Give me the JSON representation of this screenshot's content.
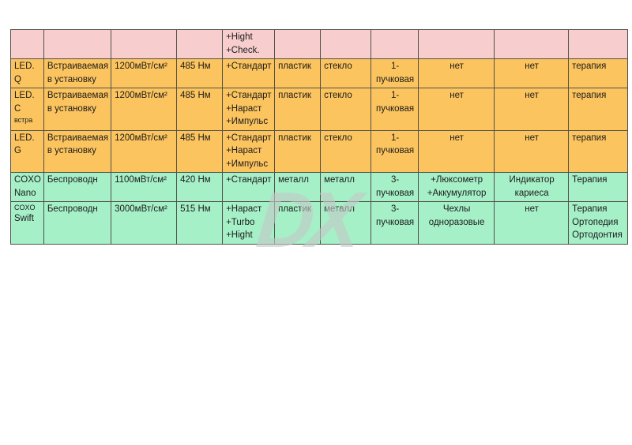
{
  "watermark": {
    "text": "DX"
  },
  "table": {
    "border_color": "#51514a",
    "colors": {
      "pink": "#f8cdcd",
      "orange": "#fcc45e",
      "green": "#a6f0c8"
    },
    "rows": [
      {
        "bg": "pink",
        "name": [],
        "cells": [
          "",
          "",
          "",
          "+Hight\n+Check.",
          "",
          "",
          "",
          "",
          "",
          ""
        ]
      },
      {
        "bg": "orange",
        "name": [
          {
            "t": "LED."
          },
          {
            "t": "Q"
          }
        ],
        "cells": [
          "Встраиваемая\nв установку",
          "1200мВт/см²",
          "485 Нм",
          "+Стандарт",
          "пластик",
          "стекло",
          "1-\nпучковая",
          "нет",
          "нет",
          "терапия"
        ]
      },
      {
        "bg": "orange",
        "name": [
          {
            "t": "LED."
          },
          {
            "t": "C"
          },
          {
            "t": "встра",
            "small": true
          }
        ],
        "cells": [
          "Встраиваемая\nв установку",
          "1200мВт/см²",
          "485 Нм",
          "+Стандарт\n+Нараст\n+Импульс",
          "пластик",
          "стекло",
          "1-\nпучковая",
          "нет",
          "нет",
          "терапия"
        ]
      },
      {
        "bg": "orange",
        "name": [
          {
            "t": "LED."
          },
          {
            "t": "G"
          }
        ],
        "cells": [
          "Встраиваемая\nв установку",
          "1200мВт/см²",
          "485 Нм",
          "+Стандарт\n+Нараст\n+Импульс",
          "пластик",
          "стекло",
          "1-\nпучковая",
          "нет",
          "нет",
          "терапия"
        ]
      },
      {
        "bg": "green",
        "name": [
          {
            "t": "COXO"
          },
          {
            "t": "Nano"
          }
        ],
        "cells": [
          "Беспроводн",
          "1100мВт/см²",
          "420 Нм",
          "+Стандарт",
          "металл",
          "металл",
          "3-\nпучковая",
          "+Люксометр\n+Аккумулятор",
          "Индикатор\nкариеса",
          "Терапия"
        ]
      },
      {
        "bg": "green",
        "name": [
          {
            "t": "COXO",
            "small": true
          },
          {
            "t": "Swift"
          }
        ],
        "cells": [
          "Беспроводн",
          "3000мВт/см²",
          "515 Нм",
          "+Нараст\n+Turbo\n+Hight",
          "пластик",
          "металл",
          "3-\nпучковая",
          "Чехлы\nодноразовые",
          "нет",
          "Терапия\nОртопедия\nОртодонтия"
        ]
      }
    ]
  }
}
